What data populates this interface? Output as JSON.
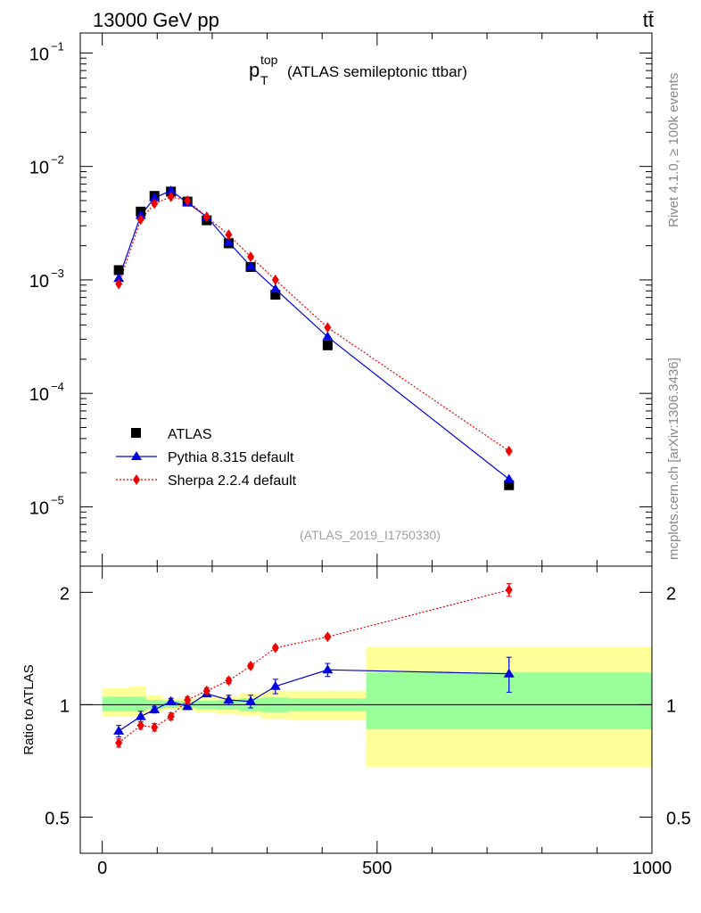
{
  "header": {
    "energy_label": "13000 GeV pp",
    "process_label": "tt̄"
  },
  "side_text": {
    "rivet": "Rivet 4.1.0, ≥ 100k events",
    "mcplots": "mcplots.cern.ch [arXiv:1306.3436]"
  },
  "chart_data": [
    {
      "type": "line",
      "title_main": "p",
      "title_sub": "T",
      "title_sup": "top",
      "title_rest": "(ATLAS semileptonic ttbar)",
      "analysis_id": "(ATLAS_2019_I1750330)",
      "xlim": [
        -40,
        1000
      ],
      "yscale": "log",
      "ylim": [
        3e-06,
        0.15
      ],
      "ytick_values": [
        1e-05,
        0.0001,
        0.001,
        0.01,
        0.1
      ],
      "ytick_bases": [
        "10",
        "10",
        "10",
        "10",
        "10"
      ],
      "ytick_exps": [
        "−5",
        "−4",
        "−3",
        "−2",
        "−1"
      ],
      "legend": {
        "position": "lower-left",
        "entries": [
          "ATLAS",
          "Pythia 8.315 default",
          "Sherpa 2.2.4 default"
        ]
      },
      "x": [
        30,
        70,
        95,
        125,
        155,
        190,
        230,
        270,
        315,
        410,
        740
      ],
      "series": [
        {
          "name": "ATLAS",
          "color": "#000000",
          "marker": "square",
          "values": [
            0.00122,
            0.004,
            0.0055,
            0.006,
            0.0049,
            0.00335,
            0.0021,
            0.0013,
            0.00074,
            0.000265,
            1.55e-05
          ]
        },
        {
          "name": "Pythia 8.315 default",
          "color": "#0000dd",
          "marker": "triangle",
          "values": [
            0.00103,
            0.0037,
            0.0053,
            0.0061,
            0.0048,
            0.0036,
            0.00215,
            0.00132,
            0.00083,
            0.000315,
            1.75e-05
          ]
        },
        {
          "name": "Sherpa 2.2.4 default",
          "color": "#ee0000",
          "marker": "diamond",
          "values": [
            0.00092,
            0.0034,
            0.0047,
            0.0054,
            0.005,
            0.0036,
            0.0025,
            0.0016,
            0.001,
            0.00038,
            3.1e-05
          ]
        }
      ]
    },
    {
      "type": "line",
      "ylabel": "Ratio to ATLAS",
      "yscale": "log",
      "ylim": [
        0.4,
        2.35
      ],
      "ytick_values": [
        0.5,
        1,
        2
      ],
      "ytick_labels": [
        "0.5",
        "1",
        "2"
      ],
      "xtick_values": [
        0,
        500,
        1000
      ],
      "xtick_labels": [
        "0",
        "500",
        "1000"
      ],
      "reference": 1,
      "x": [
        30,
        70,
        95,
        125,
        155,
        190,
        230,
        270,
        315,
        410,
        740
      ],
      "series": [
        {
          "name": "Pythia 8.315 default",
          "color": "#0000dd",
          "marker": "triangle",
          "values": [
            0.85,
            0.93,
            0.97,
            1.02,
            0.99,
            1.07,
            1.03,
            1.02,
            1.12,
            1.24,
            1.21
          ],
          "errors": [
            0.03,
            0.03,
            0.02,
            0.02,
            0.02,
            0.02,
            0.03,
            0.04,
            0.05,
            0.05,
            0.13
          ]
        },
        {
          "name": "Sherpa 2.2.4 default",
          "color": "#ee0000",
          "marker": "diamond",
          "values": [
            0.79,
            0.88,
            0.87,
            0.93,
            1.03,
            1.09,
            1.16,
            1.27,
            1.42,
            1.52,
            2.03
          ],
          "errors": [
            0.02,
            0.02,
            0.02,
            0.02,
            0.02,
            0.02,
            0.02,
            0.02,
            0.02,
            0.02,
            0.08
          ]
        }
      ],
      "bands": {
        "bin_edges": [
          0,
          50,
          80,
          110,
          140,
          170,
          210,
          250,
          290,
          340,
          480,
          1000
        ],
        "inner_color": "#99ff99",
        "outer_color": "#ffff99",
        "inner_low": [
          0.96,
          0.96,
          0.975,
          0.98,
          0.98,
          0.975,
          0.97,
          0.96,
          0.955,
          0.96,
          0.86
        ],
        "inner_high": [
          1.05,
          1.05,
          1.03,
          1.025,
          1.02,
          1.025,
          1.03,
          1.04,
          1.045,
          1.04,
          1.22
        ],
        "outer_low": [
          0.93,
          0.93,
          0.955,
          0.97,
          0.965,
          0.955,
          0.945,
          0.935,
          0.915,
          0.91,
          0.68
        ],
        "outer_high": [
          1.11,
          1.12,
          1.06,
          1.04,
          1.035,
          1.045,
          1.055,
          1.07,
          1.09,
          1.09,
          1.43
        ]
      }
    }
  ]
}
